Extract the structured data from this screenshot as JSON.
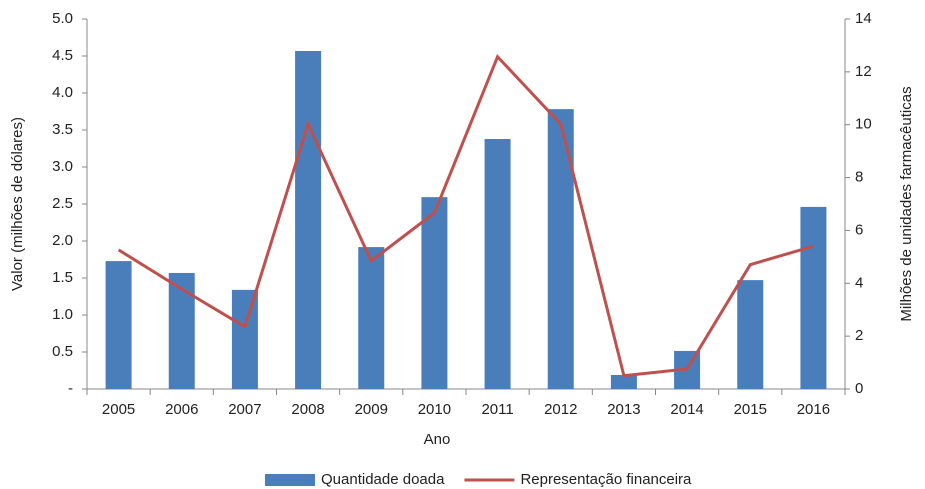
{
  "chart_data": {
    "type": "bar_line",
    "xlabel": "Ano",
    "ylabel": "Valor (milhões de dólares)",
    "y2label": "Milhões de unidades farmacêuticas",
    "categories": [
      "2005",
      "2006",
      "2007",
      "2008",
      "2009",
      "2010",
      "2011",
      "2012",
      "2013",
      "2014",
      "2015",
      "2016"
    ],
    "series": [
      {
        "name": "Quantidade doada",
        "type": "bar",
        "color": "#4a7ebb",
        "axis": "y2",
        "values": [
          4.84,
          4.39,
          3.75,
          12.79,
          5.37,
          7.26,
          9.46,
          10.59,
          0.53,
          1.44,
          4.12,
          6.89
        ]
      },
      {
        "name": "Representação financeira",
        "type": "line",
        "color": "#c0504d",
        "axis": "y",
        "values": [
          1.88,
          1.35,
          0.84,
          3.58,
          1.73,
          2.38,
          4.49,
          3.58,
          0.18,
          0.27,
          1.68,
          1.93
        ]
      }
    ],
    "ylim": [
      0,
      5
    ],
    "yticks": [
      {
        "value": 0,
        "label": "-"
      },
      0.5,
      {
        "value": 1,
        "label": "1.0"
      },
      1.5,
      {
        "value": 2,
        "label": "2.0"
      },
      2.5,
      {
        "value": 3,
        "label": "3.0"
      },
      3.5,
      {
        "value": 4,
        "label": "4.0"
      },
      4.5,
      {
        "value": 5,
        "label": "5.0"
      }
    ],
    "y2lim": [
      0,
      14
    ],
    "y2ticks": [
      0,
      2,
      4,
      6,
      8,
      10,
      12,
      14
    ],
    "legend": "bottom"
  }
}
